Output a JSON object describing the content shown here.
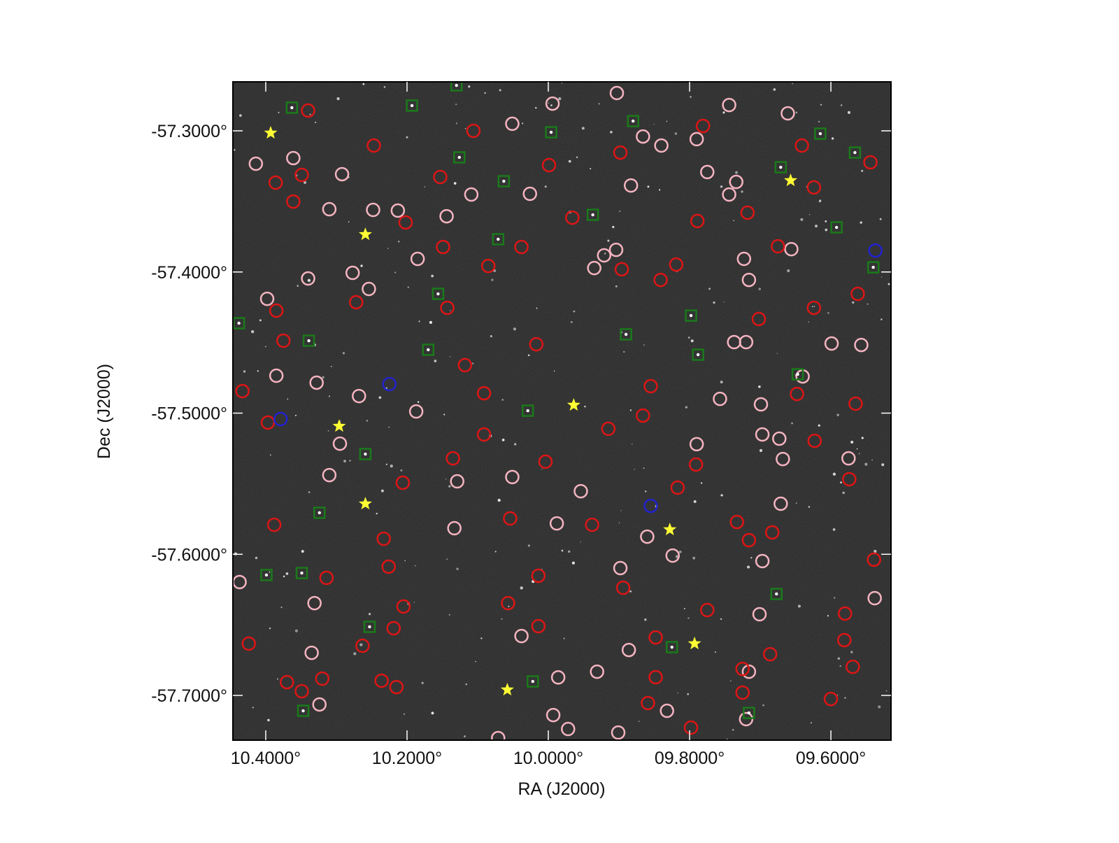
{
  "chart_data": {
    "type": "scatter",
    "xlabel": "RA (J2000)",
    "ylabel": "Dec (J2000)",
    "xlim": [
      10.4465,
      9.5149
    ],
    "ylim": [
      -57.7317,
      -57.2653
    ],
    "xticks": [
      {
        "value": 10.4,
        "label": "10.4000°"
      },
      {
        "value": 10.2,
        "label": "10.2000°"
      },
      {
        "value": 10.0,
        "label": "10.0000°"
      },
      {
        "value": 9.8,
        "label": "09.8000°"
      },
      {
        "value": 9.6,
        "label": "09.6000°"
      }
    ],
    "yticks": [
      {
        "value": -57.3,
        "label": "-57.3000°"
      },
      {
        "value": -57.4,
        "label": "-57.4000°"
      },
      {
        "value": -57.5,
        "label": "-57.5000°"
      },
      {
        "value": -57.6,
        "label": "-57.6000°"
      },
      {
        "value": -57.7,
        "label": "-57.7000°"
      }
    ],
    "series": [
      {
        "color": "#f4b4c0",
        "marker": "circle",
        "x": [
          10.414,
          10.361,
          10.292,
          10.31,
          10.248,
          10.213,
          10.144,
          10.109,
          10.051,
          9.994,
          9.903,
          9.866,
          9.84,
          9.79,
          9.775,
          9.744,
          9.661,
          10.026,
          9.883,
          9.921,
          9.904,
          9.935,
          10.185,
          10.277,
          10.254,
          10.34,
          10.398,
          10.385,
          10.328,
          10.268,
          10.187,
          10.295,
          10.31,
          10.133,
          10.129,
          10.051,
          9.988,
          9.954,
          9.898,
          9.86,
          9.824,
          9.886,
          9.931,
          9.986,
          10.038,
          9.697,
          9.701,
          9.671,
          9.668,
          9.575,
          9.538,
          9.599,
          9.557,
          9.64,
          9.699,
          9.697,
          9.673,
          9.79,
          9.757,
          9.737,
          9.72,
          9.716,
          9.723,
          9.656,
          9.744,
          9.734,
          10.437,
          10.331,
          10.335,
          10.324,
          9.993,
          9.972,
          9.901,
          9.832,
          9.72,
          10.071,
          9.716
        ],
        "y": [
          -57.3233,
          -57.3193,
          -57.3307,
          -57.3555,
          -57.356,
          -57.3565,
          -57.3605,
          -57.3451,
          -57.295,
          -57.2807,
          -57.2732,
          -57.304,
          -57.3104,
          -57.3059,
          -57.3292,
          -57.2817,
          -57.2876,
          -57.3446,
          -57.3387,
          -57.3882,
          -57.3843,
          -57.3972,
          -57.3907,
          -57.4006,
          -57.412,
          -57.4046,
          -57.419,
          -57.4735,
          -57.4784,
          -57.4879,
          -57.4988,
          -57.5216,
          -57.5439,
          -57.5815,
          -57.5483,
          -57.5453,
          -57.5781,
          -57.5553,
          -57.6098,
          -57.5875,
          -57.6009,
          -57.6678,
          -57.6832,
          -57.6872,
          -57.6579,
          -57.6048,
          -57.6425,
          -57.5642,
          -57.5325,
          -57.532,
          -57.6311,
          -57.4507,
          -57.4517,
          -57.474,
          -57.4938,
          -57.5151,
          -57.5181,
          -57.522,
          -57.4899,
          -57.4497,
          -57.4497,
          -57.4056,
          -57.3907,
          -57.3838,
          -57.3451,
          -57.3362,
          -57.6197,
          -57.6346,
          -57.6698,
          -57.7064,
          -57.7139,
          -57.7238,
          -57.7263,
          -57.7109,
          -57.7168,
          -57.7302,
          -57.6832
        ]
      },
      {
        "color": "#dd1515",
        "marker": "circle",
        "x": [
          10.34,
          10.106,
          10.153,
          10.247,
          9.999,
          9.898,
          9.781,
          9.641,
          9.624,
          9.544,
          10.386,
          10.349,
          10.361,
          10.202,
          10.149,
          10.085,
          10.038,
          9.966,
          9.896,
          9.841,
          9.819,
          9.789,
          9.718,
          9.675,
          9.624,
          9.562,
          10.385,
          10.375,
          10.433,
          10.397,
          10.272,
          10.143,
          10.118,
          10.091,
          10.017,
          9.855,
          9.866,
          9.915,
          10.091,
          10.206,
          10.135,
          10.233,
          10.226,
          10.314,
          10.388,
          10.054,
          10.004,
          9.938,
          9.817,
          9.791,
          9.702,
          9.648,
          9.565,
          9.623,
          9.574,
          9.733,
          9.716,
          9.683,
          9.58,
          9.539,
          9.894,
          10.014,
          10.057,
          10.014,
          10.219,
          10.205,
          10.263,
          10.424,
          10.37,
          10.349,
          10.32,
          10.236,
          10.215,
          9.848,
          9.859,
          9.798,
          9.725,
          9.6,
          9.581,
          9.569,
          9.686,
          9.725,
          9.775,
          9.848
        ],
        "y": [
          -57.2856,
          -57.3,
          -57.3327,
          -57.3104,
          -57.3243,
          -57.3154,
          -57.2965,
          -57.3104,
          -57.3401,
          -57.3223,
          -57.3367,
          -57.3312,
          -57.3501,
          -57.3649,
          -57.3823,
          -57.3957,
          -57.3823,
          -57.3615,
          -57.3981,
          -57.4056,
          -57.3947,
          -57.3639,
          -57.358,
          -57.3818,
          -57.4254,
          -57.4155,
          -57.4274,
          -57.4487,
          -57.4844,
          -57.5067,
          -57.4214,
          -57.4254,
          -57.466,
          -57.4859,
          -57.4512,
          -57.4809,
          -57.5017,
          -57.5111,
          -57.5151,
          -57.5493,
          -57.532,
          -57.589,
          -57.6088,
          -57.6167,
          -57.5791,
          -57.5746,
          -57.5344,
          -57.5791,
          -57.5528,
          -57.5364,
          -57.4333,
          -57.4864,
          -57.4933,
          -57.5196,
          -57.5468,
          -57.5771,
          -57.59,
          -57.5845,
          -57.642,
          -57.6038,
          -57.6237,
          -57.6152,
          -57.6346,
          -57.6509,
          -57.6524,
          -57.637,
          -57.6648,
          -57.6633,
          -57.6906,
          -57.697,
          -57.6881,
          -57.6896,
          -57.6941,
          -57.6871,
          -57.7054,
          -57.7228,
          -57.698,
          -57.7025,
          -57.6608,
          -57.6797,
          -57.6708,
          -57.6812,
          -57.6395,
          -57.6589
        ]
      },
      {
        "color": "#1a7a1a",
        "marker": "square",
        "x": [
          10.363,
          10.193,
          10.126,
          10.063,
          9.937,
          9.88,
          9.996,
          9.671,
          9.615,
          9.566,
          9.592,
          9.54,
          10.156,
          10.17,
          10.438,
          10.339,
          9.89,
          9.798,
          9.788,
          10.029,
          10.259,
          10.324,
          10.399,
          10.349,
          10.253,
          9.677,
          9.825,
          10.022,
          10.347,
          9.716,
          10.071,
          9.647,
          10.13
        ],
        "y": [
          -57.2836,
          -57.2821,
          -57.3188,
          -57.3357,
          -57.3595,
          -57.2931,
          -57.301,
          -57.3258,
          -57.302,
          -57.3154,
          -57.3684,
          -57.3967,
          -57.4155,
          -57.4551,
          -57.4363,
          -57.4487,
          -57.4442,
          -57.4309,
          -57.4586,
          -57.4983,
          -57.529,
          -57.5706,
          -57.6147,
          -57.6133,
          -57.6514,
          -57.6281,
          -57.6658,
          -57.6901,
          -57.7109,
          -57.7124,
          -57.3768,
          -57.4725,
          -57.2678
        ]
      },
      {
        "color": "#2222d0",
        "marker": "circle",
        "x": [
          10.379,
          10.225,
          9.855,
          9.537
        ],
        "y": [
          -57.5042,
          -57.4794,
          -57.5657,
          -57.3848
        ]
      },
      {
        "color": "#ffff33",
        "marker": "star",
        "x": [
          10.393,
          10.259,
          10.296,
          10.259,
          9.964,
          9.828,
          9.793,
          10.058,
          9.657
        ],
        "y": [
          -57.3015,
          -57.3734,
          -57.5092,
          -57.5642,
          -57.4943,
          -57.5825,
          -57.6633,
          -57.696,
          -57.3352
        ]
      }
    ]
  }
}
